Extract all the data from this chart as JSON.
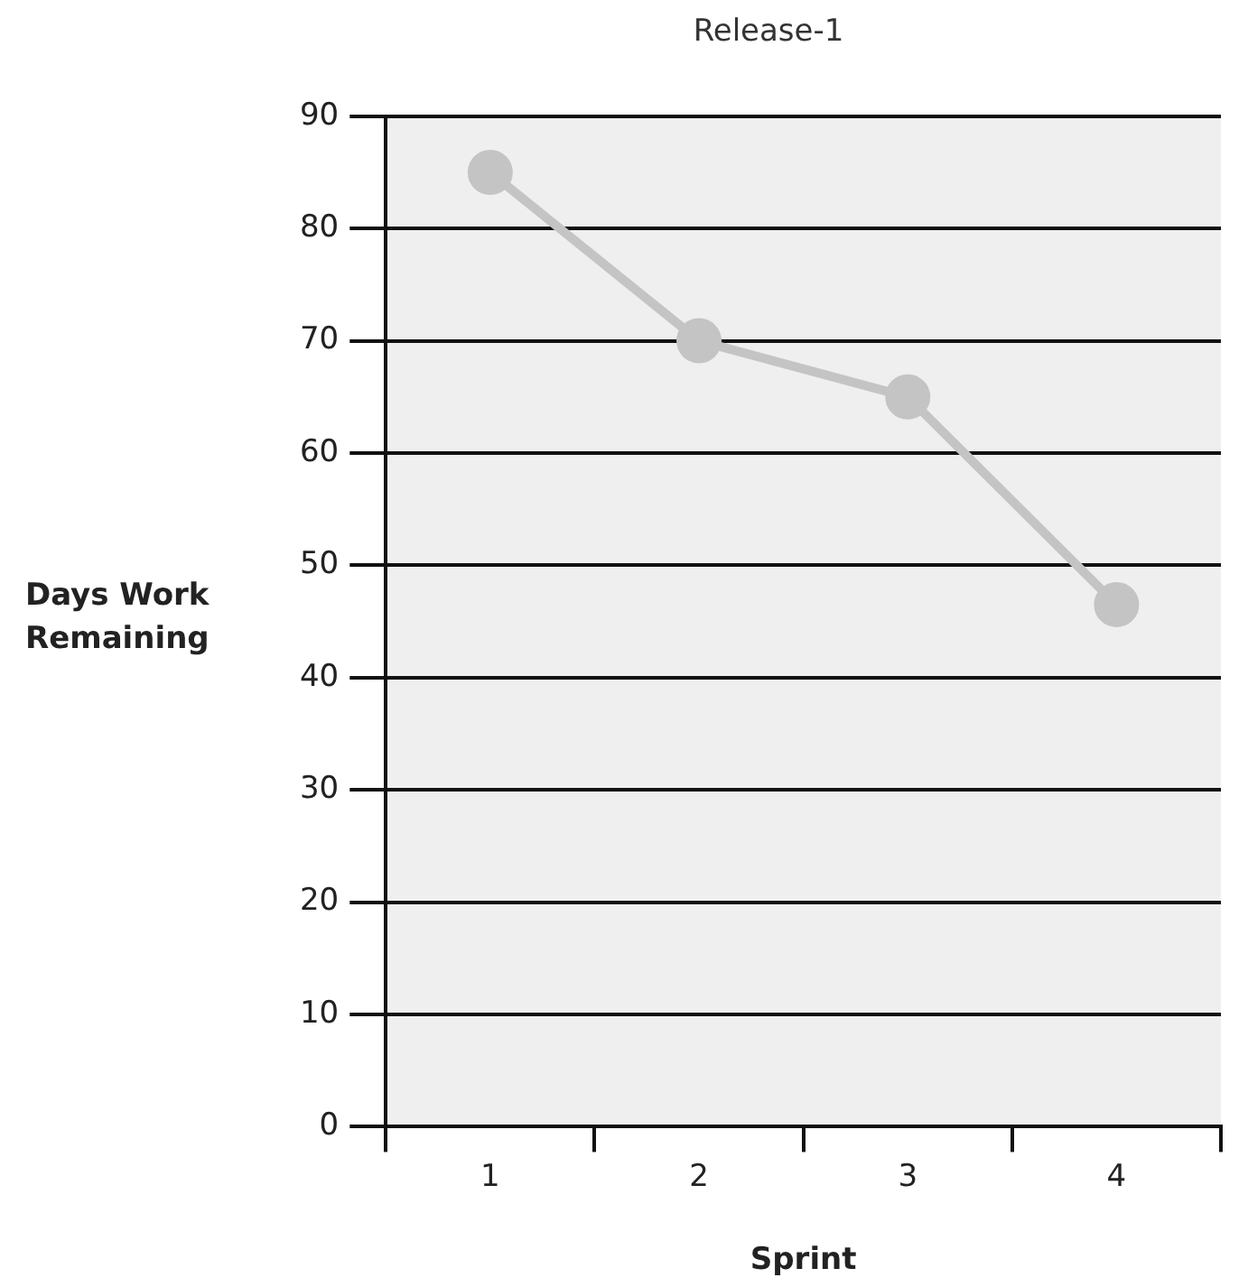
{
  "chart_data": {
    "type": "line",
    "title": "Release-1",
    "xlabel": "Sprint",
    "ylabel": "Days Work Remaining",
    "categories": [
      "1",
      "2",
      "3",
      "4"
    ],
    "series": [
      {
        "color": "#c4c4c4",
        "values": [
          85,
          70,
          65,
          46.5
        ]
      }
    ],
    "ylim": [
      0,
      90
    ],
    "yticks": [
      0,
      10,
      20,
      30,
      40,
      50,
      60,
      70,
      80,
      90
    ],
    "grid": "y",
    "marker": "circle",
    "line_style": "solid"
  }
}
